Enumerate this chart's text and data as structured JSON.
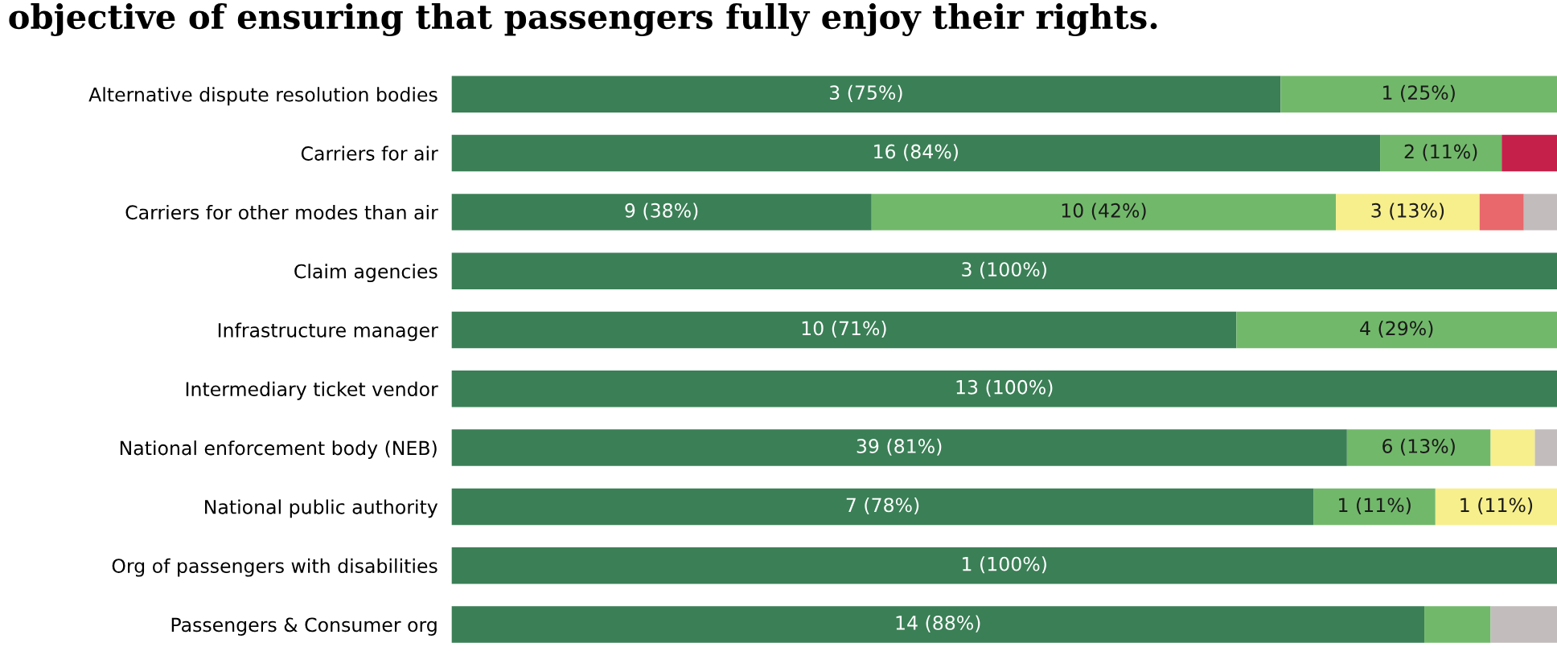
{
  "chart_data": {
    "type": "bar",
    "orientation": "horizontal",
    "stacked": true,
    "xlim": [
      0,
      100
    ],
    "tick_labels": "y",
    "title": "objective of ensuring that passengers fully enjoy their rights.",
    "categories": [
      "Alternative dispute resolution bodies",
      "Carriers for air",
      "Carriers for other modes than air",
      "Claim agencies",
      "Infrastructure manager",
      "Intermediary ticket vendor",
      "National enforcement body (NEB)",
      "National public authority",
      "Org of passengers with disabilities",
      "Passengers & Consumer org"
    ],
    "series": [
      {
        "color": "#3b7f56",
        "values": [
          75,
          84,
          38,
          100,
          71,
          100,
          81,
          78,
          100,
          88
        ],
        "value_labels": [
          "3 (75%)",
          "16 (84%)",
          "9 (38%)",
          "3 (100%)",
          "10 (71%)",
          "13 (100%)",
          "39 (81%)",
          "7 (78%)",
          "1 (100%)",
          "14 (88%)"
        ]
      },
      {
        "color": "#72b86b",
        "values": [
          25,
          11,
          42,
          0,
          29,
          0,
          13,
          11,
          0,
          6
        ],
        "value_labels": [
          "1 (25%)",
          "2 (11%)",
          "10 (42%)",
          null,
          "4 (29%)",
          null,
          "6 (13%)",
          "1 (11%)",
          null,
          null
        ]
      },
      {
        "color": "#f6ef8c",
        "values": [
          0,
          0,
          13,
          0,
          0,
          0,
          4,
          11,
          0,
          0
        ],
        "value_labels": [
          null,
          null,
          "3 (13%)",
          null,
          null,
          null,
          null,
          "1 (11%)",
          null,
          null
        ]
      },
      {
        "color": "#e8686c",
        "values": [
          0,
          0,
          4,
          0,
          0,
          0,
          0,
          0,
          0,
          0
        ]
      },
      {
        "color": "#c4204a",
        "values": [
          0,
          5,
          0,
          0,
          0,
          0,
          0,
          0,
          0,
          0
        ]
      },
      {
        "color": "#c3bcbc",
        "values": [
          0,
          0,
          3,
          0,
          0,
          0,
          2,
          0,
          0,
          6
        ]
      }
    ]
  }
}
